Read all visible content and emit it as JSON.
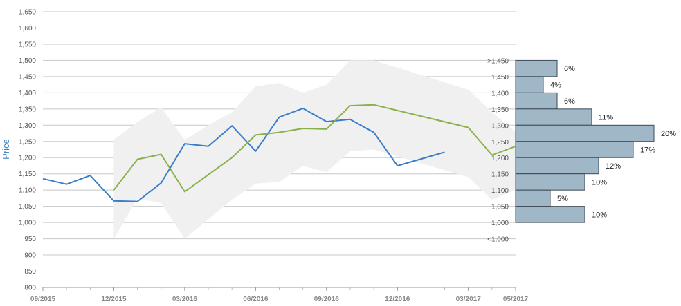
{
  "chart_data": {
    "type": "line",
    "ylabel": "Price",
    "ylim": [
      800,
      1650
    ],
    "yticks": [
      "1,650",
      "1,600",
      "1,550",
      "1,500",
      "1,450",
      "1,400",
      "1,350",
      "1,300",
      "1,250",
      "1,200",
      "1,150",
      "1,100",
      "1,050",
      "1,000",
      "950",
      "900",
      "850",
      "800"
    ],
    "xlim": [
      "2015-09",
      "2017-05"
    ],
    "xticks": [
      "09/2015",
      "12/2015",
      "03/2016",
      "06/2016",
      "09/2016",
      "12/2016",
      "03/2017",
      "05/2017"
    ],
    "grid": true,
    "series": [
      {
        "color": "#3a7dc8",
        "points": [
          [
            "2015-09",
            1135
          ],
          [
            "2015-10",
            1118
          ],
          [
            "2015-11",
            1145
          ],
          [
            "2015-12",
            1067
          ],
          [
            "2016-01",
            1065
          ],
          [
            "2016-02",
            1122
          ],
          [
            "2016-03",
            1243
          ],
          [
            "2016-04",
            1235
          ],
          [
            "2016-05",
            1298
          ],
          [
            "2016-06",
            1220
          ],
          [
            "2016-07",
            1325
          ],
          [
            "2016-08",
            1352
          ],
          [
            "2016-09",
            1311
          ],
          [
            "2016-10",
            1318
          ],
          [
            "2016-11",
            1278
          ],
          [
            "2016-12",
            1175
          ],
          [
            "2017-02",
            1217
          ]
        ]
      },
      {
        "color": "#8ab04a",
        "points": [
          [
            "2015-12",
            1100
          ],
          [
            "2016-01",
            1195
          ],
          [
            "2016-02",
            1210
          ],
          [
            "2016-03",
            1095
          ],
          [
            "2016-05",
            1200
          ],
          [
            "2016-06",
            1270
          ],
          [
            "2016-07",
            1278
          ],
          [
            "2016-08",
            1290
          ],
          [
            "2016-09",
            1288
          ],
          [
            "2016-10",
            1360
          ],
          [
            "2016-11",
            1363
          ],
          [
            "2017-03",
            1293
          ],
          [
            "2017-04",
            1208
          ],
          [
            "2017-05",
            1235
          ]
        ]
      }
    ],
    "band": {
      "color": "#f0f0f0",
      "upper": [
        [
          "2015-12",
          1255
        ],
        [
          "2016-01",
          1310
        ],
        [
          "2016-02",
          1355
        ],
        [
          "2016-03",
          1255
        ],
        [
          "2016-04",
          1300
        ],
        [
          "2016-05",
          1340
        ],
        [
          "2016-06",
          1420
        ],
        [
          "2016-07",
          1430
        ],
        [
          "2016-08",
          1400
        ],
        [
          "2016-09",
          1425
        ],
        [
          "2016-10",
          1500
        ],
        [
          "2016-11",
          1500
        ],
        [
          "2017-03",
          1410
        ],
        [
          "2017-04",
          1340
        ],
        [
          "2017-05",
          1280
        ]
      ],
      "lower": [
        [
          "2015-12",
          950
        ],
        [
          "2016-01",
          1075
        ],
        [
          "2016-02",
          1060
        ],
        [
          "2016-03",
          950
        ],
        [
          "2016-04",
          1010
        ],
        [
          "2016-05",
          1070
        ],
        [
          "2016-06",
          1120
        ],
        [
          "2016-07",
          1125
        ],
        [
          "2016-08",
          1175
        ],
        [
          "2016-09",
          1155
        ],
        [
          "2016-10",
          1220
        ],
        [
          "2016-11",
          1225
        ],
        [
          "2017-03",
          1140
        ],
        [
          "2017-04",
          1070
        ],
        [
          "2017-05",
          1100
        ]
      ]
    },
    "histogram": {
      "color": "#9fb7c6",
      "bins": [
        {
          "label": ">1,450",
          "center": 1475,
          "percent": 6,
          "text": "6%"
        },
        {
          "label": "1,450",
          "center": 1425,
          "percent": 4,
          "text": "4%"
        },
        {
          "label": "1,400",
          "center": 1375,
          "percent": 6,
          "text": "6%"
        },
        {
          "label": "1,350",
          "center": 1325,
          "percent": 11,
          "text": "11%"
        },
        {
          "label": "1,300",
          "center": 1275,
          "percent": 20,
          "text": "20%"
        },
        {
          "label": "1,250",
          "center": 1225,
          "percent": 17,
          "text": "17%"
        },
        {
          "label": "1,200",
          "center": 1175,
          "percent": 12,
          "text": "12%"
        },
        {
          "label": "1,150",
          "center": 1125,
          "percent": 10,
          "text": "10%"
        },
        {
          "label": "1,100",
          "center": 1075,
          "percent": 5,
          "text": "5%"
        },
        {
          "label": "1,050",
          "center": 1025,
          "percent": 10,
          "text": "10%"
        },
        {
          "label": "1,000",
          "center": 975,
          "percent": 0,
          "text": ""
        },
        {
          "label": "<1,000",
          "center": 925,
          "percent": 0,
          "text": ""
        }
      ]
    }
  }
}
